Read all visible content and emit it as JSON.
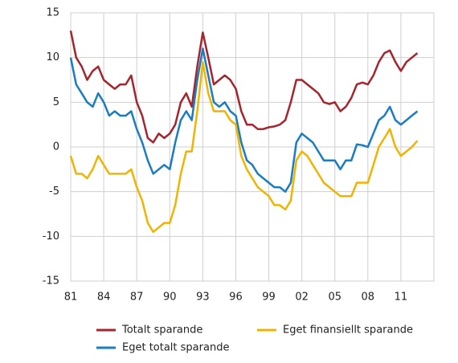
{
  "chart_data": {
    "type": "line",
    "x": [
      1981,
      1981.5,
      1982,
      1982.5,
      1983,
      1983.5,
      1984,
      1984.5,
      1985,
      1985.5,
      1986,
      1986.5,
      1987,
      1987.5,
      1988,
      1988.5,
      1989,
      1989.5,
      1990,
      1990.5,
      1991,
      1991.5,
      1992,
      1992.5,
      1993,
      1993.5,
      1994,
      1994.5,
      1995,
      1995.5,
      1996,
      1996.5,
      1997,
      1997.5,
      1998,
      1998.5,
      1999,
      1999.5,
      2000,
      2000.5,
      2001,
      2001.5,
      2002,
      2002.5,
      2003,
      2003.5,
      2004,
      2004.5,
      2005,
      2005.5,
      2006,
      2006.5,
      2007,
      2007.5,
      2008,
      2008.5,
      2009,
      2009.5,
      2010,
      2010.5,
      2011,
      2011.5,
      2012,
      2012.5
    ],
    "series": [
      {
        "name": "Totalt sparande",
        "color": "#a5242d",
        "values": [
          13,
          10,
          9,
          7.5,
          8.5,
          9,
          7.5,
          7,
          6.5,
          7,
          7,
          8,
          5,
          3.5,
          1,
          0.5,
          1.5,
          1,
          1.5,
          2.5,
          5,
          6,
          4.5,
          9,
          12.8,
          10,
          7,
          7.5,
          8,
          7.5,
          6.5,
          4,
          2.5,
          2.5,
          2,
          2,
          2.2,
          2.3,
          2.5,
          3,
          5,
          7.5,
          7.5,
          7,
          6.5,
          6,
          5,
          4.8,
          5,
          4,
          4.5,
          5.5,
          7,
          7.2,
          7,
          8,
          9.5,
          10.5,
          10.8,
          9.5,
          8.5,
          9.5,
          10,
          10.5
        ]
      },
      {
        "name": "Eget totalt sparande",
        "color": "#1a7cc1",
        "values": [
          10,
          7,
          6,
          5,
          4.5,
          6,
          5,
          3.5,
          4,
          3.5,
          3.5,
          4,
          2,
          0.5,
          -1.5,
          -3,
          -2.5,
          -2,
          -2.5,
          0.5,
          3,
          4,
          3,
          7.5,
          11,
          8,
          5,
          4.5,
          5,
          4,
          3.5,
          0.5,
          -1.5,
          -2,
          -3,
          -3.5,
          -4,
          -4.5,
          -4.5,
          -5,
          -4,
          0.5,
          1.5,
          1,
          0.5,
          -0.5,
          -1.5,
          -1.5,
          -1.5,
          -2.5,
          -1.5,
          -1.5,
          0.3,
          0.2,
          0,
          1.5,
          3,
          3.5,
          4.5,
          3,
          2.5,
          3,
          3.5,
          4
        ]
      },
      {
        "name": "Eget finansiellt sparande",
        "color": "#f0b400",
        "values": [
          -1,
          -3,
          -3,
          -3.5,
          -2.5,
          -1,
          -2,
          -3,
          -3,
          -3,
          -3,
          -2.5,
          -4.5,
          -6,
          -8.5,
          -9.5,
          -9,
          -8.5,
          -8.5,
          -6.5,
          -3,
          -0.5,
          -0.5,
          4,
          9.5,
          6,
          4,
          4,
          4,
          3,
          2.5,
          -1,
          -2.5,
          -3.5,
          -4.5,
          -5,
          -5.5,
          -6.5,
          -6.5,
          -7,
          -6,
          -1.5,
          -0.5,
          -1,
          -2,
          -3,
          -4,
          -4.5,
          -5,
          -5.5,
          -5.5,
          -5.5,
          -4,
          -4,
          -4,
          -2,
          0,
          1,
          2,
          0,
          -1,
          -0.5,
          0,
          0.7
        ]
      }
    ],
    "xlim": [
      1981,
      2014
    ],
    "xticks": [
      {
        "value": 1981,
        "label": "81"
      },
      {
        "value": 1984,
        "label": "84"
      },
      {
        "value": 1987,
        "label": "87"
      },
      {
        "value": 1990,
        "label": "90"
      },
      {
        "value": 1993,
        "label": "93"
      },
      {
        "value": 1996,
        "label": "96"
      },
      {
        "value": 1999,
        "label": "99"
      },
      {
        "value": 2002,
        "label": "02"
      },
      {
        "value": 2005,
        "label": "05"
      },
      {
        "value": 2008,
        "label": "08"
      },
      {
        "value": 2011,
        "label": "11"
      }
    ],
    "ylim": [
      -15,
      15
    ],
    "yticks": [
      -15,
      -10,
      -5,
      0,
      5,
      10,
      15
    ],
    "grid": true
  }
}
